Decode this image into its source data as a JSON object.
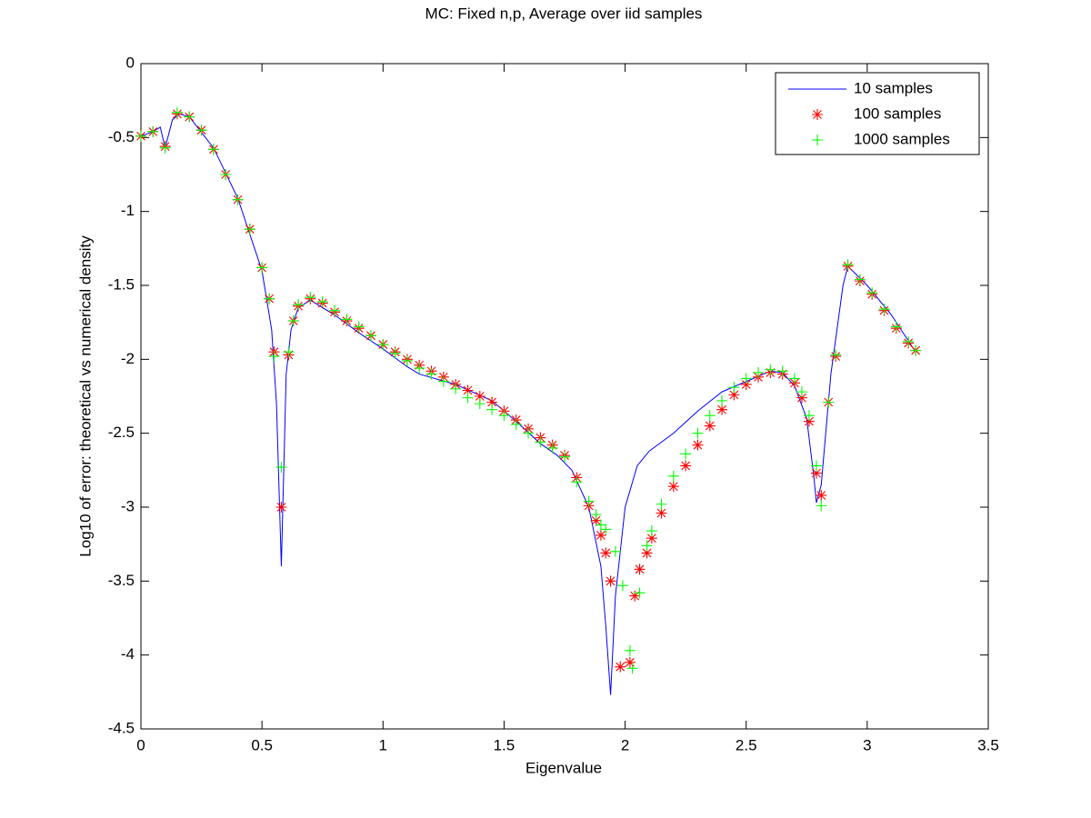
{
  "chart_data": {
    "type": "scatter",
    "title": "MC: Fixed n,p, Average over iid samples",
    "x_label": "Eigenvalue",
    "y_label": "Log10 of error: theoretical vs numerical density",
    "xlim": [
      0,
      3.5
    ],
    "ylim": [
      -4.5,
      0
    ],
    "xticks": [
      0,
      0.5,
      1,
      1.5,
      2,
      2.5,
      3,
      3.5
    ],
    "yticks": [
      -4.5,
      -4,
      -3.5,
      -3,
      -2.5,
      -2,
      -1.5,
      -1,
      -0.5,
      0
    ],
    "legend": "upper right",
    "series": [
      {
        "name": "10 samples",
        "color": "#0000ff",
        "mark": "line",
        "x": [
          0,
          0.05,
          0.08,
          0.1,
          0.13,
          0.16,
          0.2,
          0.3,
          0.4,
          0.5,
          0.54,
          0.56,
          0.58,
          0.6,
          0.62,
          0.65,
          0.7,
          0.8,
          0.9,
          1.0,
          1.1,
          1.15,
          1.3,
          1.45,
          1.55,
          1.65,
          1.72,
          1.78,
          1.85,
          1.9,
          1.92,
          1.94,
          1.96,
          2.0,
          2.05,
          2.1,
          2.2,
          2.3,
          2.4,
          2.5,
          2.6,
          2.65,
          2.7,
          2.75,
          2.78,
          2.79,
          2.81,
          2.85,
          2.9,
          2.92,
          3.0,
          3.1,
          3.2
        ],
        "values": [
          -0.49,
          -0.46,
          -0.43,
          -0.57,
          -0.38,
          -0.34,
          -0.36,
          -0.57,
          -0.91,
          -1.4,
          -1.8,
          -2.3,
          -3.4,
          -2.1,
          -1.8,
          -1.65,
          -1.6,
          -1.7,
          -1.82,
          -1.93,
          -2.05,
          -2.1,
          -2.17,
          -2.28,
          -2.42,
          -2.57,
          -2.65,
          -2.75,
          -3.0,
          -3.4,
          -3.8,
          -4.27,
          -3.6,
          -3.0,
          -2.72,
          -2.62,
          -2.5,
          -2.35,
          -2.22,
          -2.15,
          -2.08,
          -2.09,
          -2.18,
          -2.4,
          -2.8,
          -2.97,
          -2.85,
          -2.1,
          -1.5,
          -1.37,
          -1.5,
          -1.7,
          -1.95
        ]
      },
      {
        "name": "100 samples",
        "color": "#ff0000",
        "mark": "star",
        "x": [
          0,
          0.05,
          0.1,
          0.15,
          0.2,
          0.25,
          0.3,
          0.35,
          0.4,
          0.45,
          0.5,
          0.53,
          0.55,
          0.58,
          0.61,
          0.63,
          0.65,
          0.7,
          0.75,
          0.8,
          0.85,
          0.9,
          0.95,
          1.0,
          1.05,
          1.1,
          1.15,
          1.2,
          1.25,
          1.3,
          1.35,
          1.4,
          1.45,
          1.5,
          1.55,
          1.6,
          1.65,
          1.7,
          1.75,
          1.8,
          1.85,
          1.88,
          1.9,
          1.92,
          1.94,
          1.98,
          2.02,
          2.04,
          2.06,
          2.09,
          2.11,
          2.15,
          2.2,
          2.25,
          2.3,
          2.35,
          2.4,
          2.45,
          2.5,
          2.55,
          2.6,
          2.65,
          2.7,
          2.73,
          2.76,
          2.79,
          2.81,
          2.84,
          2.87,
          2.92,
          2.97,
          3.02,
          3.07,
          3.12,
          3.17,
          3.2
        ],
        "values": [
          -0.49,
          -0.46,
          -0.56,
          -0.34,
          -0.36,
          -0.45,
          -0.58,
          -0.75,
          -0.92,
          -1.12,
          -1.38,
          -1.59,
          -1.95,
          -3.0,
          -1.97,
          -1.74,
          -1.64,
          -1.59,
          -1.62,
          -1.68,
          -1.74,
          -1.79,
          -1.84,
          -1.9,
          -1.95,
          -2.0,
          -2.04,
          -2.08,
          -2.12,
          -2.17,
          -2.21,
          -2.25,
          -2.29,
          -2.35,
          -2.41,
          -2.47,
          -2.53,
          -2.58,
          -2.65,
          -2.8,
          -2.99,
          -3.09,
          -3.19,
          -3.31,
          -3.5,
          -4.08,
          -4.05,
          -3.6,
          -3.42,
          -3.31,
          -3.21,
          -3.04,
          -2.86,
          -2.72,
          -2.58,
          -2.45,
          -2.34,
          -2.24,
          -2.17,
          -2.12,
          -2.09,
          -2.1,
          -2.16,
          -2.26,
          -2.42,
          -2.77,
          -2.92,
          -2.29,
          -1.98,
          -1.37,
          -1.47,
          -1.56,
          -1.67,
          -1.79,
          -1.89,
          -1.94
        ]
      },
      {
        "name": "1000 samples",
        "color": "#00ff00",
        "mark": "plus",
        "x": [
          0,
          0.05,
          0.1,
          0.15,
          0.2,
          0.25,
          0.3,
          0.35,
          0.4,
          0.45,
          0.5,
          0.53,
          0.55,
          0.58,
          0.61,
          0.63,
          0.65,
          0.7,
          0.75,
          0.8,
          0.85,
          0.9,
          0.95,
          1.0,
          1.05,
          1.1,
          1.15,
          1.2,
          1.25,
          1.3,
          1.35,
          1.4,
          1.45,
          1.5,
          1.55,
          1.6,
          1.65,
          1.7,
          1.75,
          1.8,
          1.85,
          1.88,
          1.9,
          1.92,
          1.96,
          1.99,
          2.02,
          2.03,
          2.06,
          2.09,
          2.11,
          2.15,
          2.2,
          2.25,
          2.3,
          2.35,
          2.4,
          2.45,
          2.5,
          2.55,
          2.6,
          2.65,
          2.7,
          2.73,
          2.76,
          2.79,
          2.81,
          2.84,
          2.87,
          2.92,
          2.97,
          3.02,
          3.07,
          3.12,
          3.17,
          3.2
        ],
        "values": [
          -0.49,
          -0.46,
          -0.57,
          -0.33,
          -0.36,
          -0.45,
          -0.58,
          -0.75,
          -0.92,
          -1.12,
          -1.38,
          -1.59,
          -1.98,
          -2.73,
          -1.95,
          -1.74,
          -1.63,
          -1.58,
          -1.61,
          -1.67,
          -1.73,
          -1.78,
          -1.84,
          -1.9,
          -1.96,
          -2.01,
          -2.06,
          -2.1,
          -2.15,
          -2.2,
          -2.26,
          -2.3,
          -2.34,
          -2.38,
          -2.44,
          -2.5,
          -2.56,
          -2.6,
          -2.66,
          -2.83,
          -2.96,
          -3.05,
          -3.12,
          -3.15,
          -3.3,
          -3.53,
          -3.97,
          -4.09,
          -3.58,
          -3.26,
          -3.16,
          -2.98,
          -2.79,
          -2.64,
          -2.5,
          -2.38,
          -2.28,
          -2.19,
          -2.13,
          -2.09,
          -2.07,
          -2.08,
          -2.13,
          -2.22,
          -2.38,
          -2.72,
          -2.99,
          -2.29,
          -1.97,
          -1.36,
          -1.46,
          -1.55,
          -1.66,
          -1.78,
          -1.88,
          -1.94
        ]
      }
    ]
  }
}
